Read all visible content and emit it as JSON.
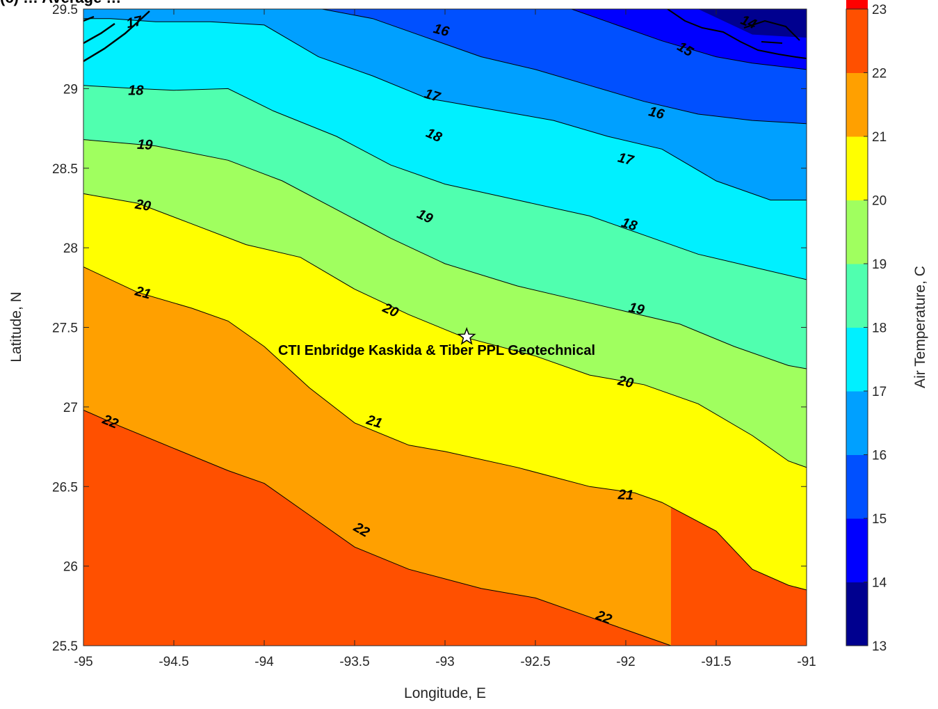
{
  "chart_data": {
    "type": "contour",
    "title": "(c) … Average …",
    "xlabel": "Longitude, E",
    "ylabel": "Latitude, N",
    "xlim": [
      -95,
      -91
    ],
    "ylim": [
      25.5,
      29.5
    ],
    "xticks": [
      -95,
      -94.5,
      -94,
      -93.5,
      -93,
      -92.5,
      -92,
      -91.5,
      -91
    ],
    "yticks": [
      25.5,
      26,
      26.5,
      27,
      27.5,
      28,
      28.5,
      29,
      29.5
    ],
    "colorbar": {
      "label": "Air Temperature, C",
      "limits": [
        13,
        23
      ],
      "ticks": [
        13,
        14,
        15,
        16,
        17,
        18,
        19,
        20,
        21,
        22,
        23
      ],
      "colors": [
        "#00008f",
        "#0000ff",
        "#0050ff",
        "#00a0ff",
        "#00f0ff",
        "#50ffaf",
        "#a0ff5f",
        "#ffff00",
        "#ffa000",
        "#ff5000",
        "#ff0000"
      ]
    },
    "contour_levels": [
      {
        "level": 22,
        "points": [
          [
            -95,
            26.98
          ],
          [
            -94.8,
            26.88
          ],
          [
            -94.5,
            26.74
          ],
          [
            -94.2,
            26.6
          ],
          [
            -94,
            26.52
          ],
          [
            -93.75,
            26.32
          ],
          [
            -93.5,
            26.12
          ],
          [
            -93.2,
            25.98
          ],
          [
            -92.8,
            25.86
          ],
          [
            -92.5,
            25.8
          ],
          [
            -92.2,
            25.68
          ],
          [
            -92,
            25.6
          ],
          [
            -91.8,
            25.52
          ],
          [
            -91.75,
            25.5
          ]
        ]
      },
      {
        "level": 21,
        "points": [
          [
            -95,
            27.88
          ],
          [
            -94.7,
            27.72
          ],
          [
            -94.4,
            27.62
          ],
          [
            -94.2,
            27.54
          ],
          [
            -94,
            27.38
          ],
          [
            -93.75,
            27.12
          ],
          [
            -93.5,
            26.9
          ],
          [
            -93.2,
            26.76
          ],
          [
            -93,
            26.72
          ],
          [
            -92.6,
            26.62
          ],
          [
            -92.2,
            26.5
          ],
          [
            -91.95,
            26.46
          ],
          [
            -91.8,
            26.4
          ],
          [
            -91.5,
            26.22
          ],
          [
            -91.3,
            25.98
          ],
          [
            -91.1,
            25.88
          ],
          [
            -91,
            25.85
          ]
        ]
      },
      {
        "level": 20,
        "points": [
          [
            -95,
            28.34
          ],
          [
            -94.7,
            28.28
          ],
          [
            -94.4,
            28.15
          ],
          [
            -94.1,
            28.02
          ],
          [
            -93.8,
            27.94
          ],
          [
            -93.5,
            27.74
          ],
          [
            -93.2,
            27.58
          ],
          [
            -92.9,
            27.44
          ],
          [
            -92.5,
            27.32
          ],
          [
            -92.2,
            27.2
          ],
          [
            -91.9,
            27.14
          ],
          [
            -91.6,
            27.02
          ],
          [
            -91.3,
            26.82
          ],
          [
            -91.1,
            26.66
          ],
          [
            -91,
            26.62
          ]
        ]
      },
      {
        "level": 19,
        "points": [
          [
            -95,
            28.68
          ],
          [
            -94.6,
            28.64
          ],
          [
            -94.2,
            28.55
          ],
          [
            -93.9,
            28.42
          ],
          [
            -93.6,
            28.24
          ],
          [
            -93.3,
            28.06
          ],
          [
            -93,
            27.9
          ],
          [
            -92.6,
            27.76
          ],
          [
            -92.3,
            27.68
          ],
          [
            -92,
            27.6
          ],
          [
            -91.7,
            27.52
          ],
          [
            -91.4,
            27.38
          ],
          [
            -91.1,
            27.26
          ],
          [
            -91,
            27.24
          ]
        ]
      },
      {
        "level": 18,
        "points": [
          [
            -95,
            29.02
          ],
          [
            -94.7,
            29.0
          ],
          [
            -94.5,
            28.99
          ],
          [
            -94.2,
            29.0
          ],
          [
            -93.95,
            28.86
          ],
          [
            -93.6,
            28.7
          ],
          [
            -93.3,
            28.52
          ],
          [
            -93,
            28.4
          ],
          [
            -92.6,
            28.3
          ],
          [
            -92.2,
            28.2
          ],
          [
            -91.9,
            28.08
          ],
          [
            -91.6,
            27.96
          ],
          [
            -91.3,
            27.88
          ],
          [
            -91,
            27.8
          ]
        ]
      },
      {
        "level": 17,
        "points": [
          [
            -95,
            29.44
          ],
          [
            -94.85,
            29.44
          ],
          [
            -94.6,
            29.42
          ],
          [
            -94.3,
            29.42
          ],
          [
            -94,
            29.4
          ],
          [
            -93.7,
            29.2
          ],
          [
            -93.4,
            29.08
          ],
          [
            -93.1,
            28.94
          ],
          [
            -92.8,
            28.88
          ],
          [
            -92.4,
            28.8
          ],
          [
            -92.1,
            28.7
          ],
          [
            -91.8,
            28.62
          ],
          [
            -91.5,
            28.42
          ],
          [
            -91.2,
            28.3
          ],
          [
            -91,
            28.3
          ]
        ]
      },
      {
        "level": 16,
        "points": [
          [
            -93.68,
            29.5
          ],
          [
            -93.4,
            29.44
          ],
          [
            -93.1,
            29.32
          ],
          [
            -92.8,
            29.2
          ],
          [
            -92.5,
            29.12
          ],
          [
            -92.2,
            29.02
          ],
          [
            -91.9,
            28.92
          ],
          [
            -91.6,
            28.84
          ],
          [
            -91.3,
            28.8
          ],
          [
            -91,
            28.78
          ]
        ]
      },
      {
        "level": 15,
        "points": [
          [
            -92.3,
            29.5
          ],
          [
            -92.1,
            29.42
          ],
          [
            -91.8,
            29.3
          ],
          [
            -91.5,
            29.2
          ],
          [
            -91.3,
            29.16
          ],
          [
            -91,
            29.12
          ]
        ]
      }
    ],
    "contour_labels": [
      {
        "text": "17",
        "lon": -94.72,
        "lat": 29.42,
        "angle": -12
      },
      {
        "text": "16",
        "lon": -93.02,
        "lat": 29.37,
        "angle": 15
      },
      {
        "text": "14",
        "lon": -91.32,
        "lat": 29.42,
        "angle": 22
      },
      {
        "text": "15",
        "lon": -91.67,
        "lat": 29.25,
        "angle": 30
      },
      {
        "text": "18",
        "lon": -94.71,
        "lat": 28.99,
        "angle": 0
      },
      {
        "text": "17",
        "lon": -93.07,
        "lat": 28.96,
        "angle": 17
      },
      {
        "text": "16",
        "lon": -91.83,
        "lat": 28.85,
        "angle": 14
      },
      {
        "text": "19",
        "lon": -94.66,
        "lat": 28.65,
        "angle": 3
      },
      {
        "text": "18",
        "lon": -93.06,
        "lat": 28.71,
        "angle": 24
      },
      {
        "text": "17",
        "lon": -92.0,
        "lat": 28.56,
        "angle": 14
      },
      {
        "text": "20",
        "lon": -94.67,
        "lat": 28.27,
        "angle": 10
      },
      {
        "text": "19",
        "lon": -93.11,
        "lat": 28.2,
        "angle": 25
      },
      {
        "text": "18",
        "lon": -91.98,
        "lat": 28.15,
        "angle": 17
      },
      {
        "text": "21",
        "lon": -94.67,
        "lat": 27.72,
        "angle": 15
      },
      {
        "text": "20",
        "lon": -93.3,
        "lat": 27.61,
        "angle": 25
      },
      {
        "text": "19",
        "lon": -91.94,
        "lat": 27.62,
        "angle": 12
      },
      {
        "text": "22",
        "lon": -94.85,
        "lat": 26.91,
        "angle": 22
      },
      {
        "text": "21",
        "lon": -93.39,
        "lat": 26.91,
        "angle": 17
      },
      {
        "text": "20",
        "lon": -92.0,
        "lat": 27.16,
        "angle": 12
      },
      {
        "text": "21",
        "lon": -92.0,
        "lat": 26.45,
        "angle": 3
      },
      {
        "text": "22",
        "lon": -93.46,
        "lat": 26.23,
        "angle": 30
      },
      {
        "text": "22",
        "lon": -92.12,
        "lat": 25.68,
        "angle": 22
      }
    ],
    "site": {
      "name": "CTI Enbridge  Kaskida & Tiber PPL Geotechnical",
      "lon": -92.88,
      "lat": 27.44
    }
  }
}
